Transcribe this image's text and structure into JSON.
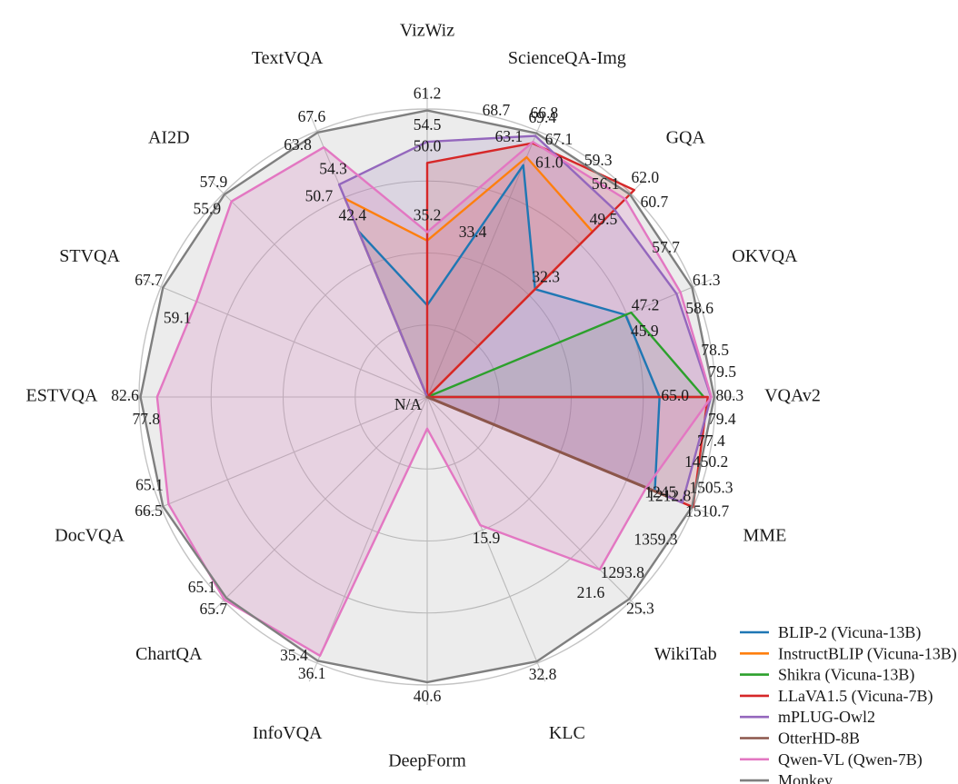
{
  "figure": {
    "background": "#ffffff"
  },
  "chart_data": {
    "type": "radar",
    "title": "",
    "categories": [
      "VizWiz",
      "ScienceQA-Img",
      "GQA",
      "OKVQA",
      "VQAv2",
      "MME",
      "WikiTab",
      "KLC",
      "DeepForm",
      "InfoVQA",
      "ChartQA",
      "DocVQA",
      "ESTVQA",
      "STVQA",
      "AI2D",
      "TextVQA"
    ],
    "axis_max": [
      61.5,
      70,
      61,
      61.6,
      80.6,
      1513,
      25.5,
      33,
      41,
      36.4,
      66,
      67,
      83,
      68.2,
      58.2,
      68
    ],
    "grid": {
      "rings": 4,
      "spokes": 16,
      "color": "#c4c4c4",
      "ring_fractions": [
        0.25,
        0.5,
        0.75,
        1.0
      ]
    },
    "na_label": "N/A",
    "series": [
      {
        "name": "BLIP-2 (Vicuna-13B)",
        "color": "#1f77b4",
        "values": [
          19.6,
          61.0,
          32.3,
          45.9,
          65.0,
          1293.8,
          null,
          null,
          null,
          null,
          null,
          null,
          null,
          null,
          null,
          42.4
        ]
      },
      {
        "name": "InstructBLIP (Vicuna-13B)",
        "color": "#ff7f0e",
        "values": [
          33.4,
          63.1,
          49.5,
          null,
          null,
          1212.8,
          null,
          null,
          null,
          null,
          null,
          null,
          null,
          null,
          null,
          50.7
        ]
      },
      {
        "name": "Shikra (Vicuna-13B)",
        "color": "#2ca02c",
        "values": [
          null,
          null,
          null,
          47.2,
          77.4,
          null,
          null,
          null,
          null,
          null,
          null,
          null,
          null,
          null,
          null,
          null
        ]
      },
      {
        "name": "LLaVA1.5 (Vicuna-7B)",
        "color": "#d62728",
        "values": [
          50.0,
          66.8,
          62.0,
          null,
          78.5,
          1510.7,
          null,
          null,
          null,
          null,
          null,
          null,
          null,
          null,
          null,
          null
        ]
      },
      {
        "name": "mPLUG-Owl2",
        "color": "#9467bd",
        "values": [
          54.5,
          68.7,
          56.1,
          57.7,
          79.4,
          1450.2,
          null,
          null,
          null,
          null,
          null,
          null,
          null,
          null,
          null,
          54.3
        ]
      },
      {
        "name": "OtterHD-8B",
        "color": "#8c564b",
        "values": [
          null,
          null,
          null,
          null,
          null,
          1359.3,
          null,
          null,
          null,
          null,
          null,
          null,
          null,
          null,
          null,
          null
        ]
      },
      {
        "name": "Qwen-VL (Qwen-7B)",
        "color": "#e377c2",
        "values": [
          35.2,
          67.1,
          59.3,
          58.6,
          79.5,
          1245.0,
          21.6,
          15.9,
          4.5,
          35.4,
          65.7,
          65.1,
          77.8,
          59.1,
          55.9,
          63.8
        ]
      },
      {
        "name": "Monkey",
        "color": "#7f7f7f",
        "values": [
          61.2,
          69.4,
          60.7,
          61.3,
          80.3,
          1505.3,
          25.3,
          32.8,
          40.6,
          36.1,
          65.1,
          66.5,
          82.6,
          67.7,
          57.9,
          67.6
        ]
      }
    ],
    "hidden_value_labels": [
      [
        "BLIP-2 (Vicuna-13B)",
        "VizWiz"
      ],
      [
        "Qwen-VL (Qwen-7B)",
        "DeepForm"
      ]
    ],
    "legend": {
      "position": "bottom-right",
      "entries": [
        "BLIP-2 (Vicuna-13B)",
        "InstructBLIP (Vicuna-13B)",
        "Shikra (Vicuna-13B)",
        "LLaVA1.5 (Vicuna-7B)",
        "mPLUG-Owl2",
        "OtterHD-8B",
        "Qwen-VL (Qwen-7B)",
        "Monkey"
      ]
    }
  }
}
